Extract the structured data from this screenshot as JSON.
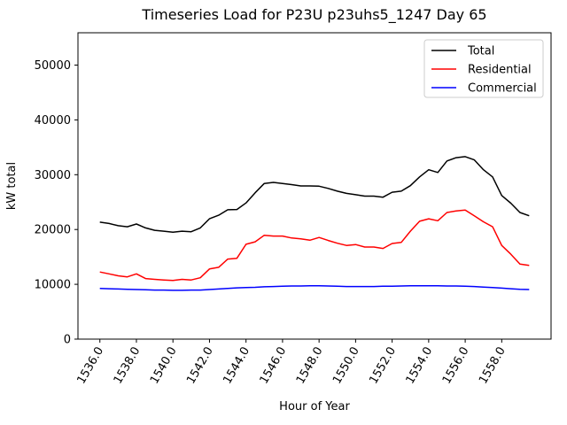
{
  "figure": {
    "title": "Timeseries Load for P23U p23uhs5_1247  Day 65"
  },
  "chart_data": {
    "type": "line",
    "title": "Timeseries Load for P23U p23uhs5_1247  Day 65",
    "xlabel": "Hour of Year",
    "ylabel": "kW total",
    "xlim": [
      1534.8,
      1560.7
    ],
    "ylim": [
      0,
      55900
    ],
    "grid": false,
    "xtick_rotation_deg": 60,
    "xticks": [
      1536,
      1538,
      1540,
      1542,
      1544,
      1546,
      1548,
      1550,
      1552,
      1554,
      1556,
      1558
    ],
    "xtick_labels": [
      "1536.0",
      "1538.0",
      "1540.0",
      "1542.0",
      "1544.0",
      "1546.0",
      "1548.0",
      "1550.0",
      "1552.0",
      "1554.0",
      "1556.0",
      "1558.0"
    ],
    "yticks": [
      0,
      10000,
      20000,
      30000,
      40000,
      50000
    ],
    "ytick_labels": [
      "0",
      "10000",
      "20000",
      "30000",
      "40000",
      "50000"
    ],
    "legend": {
      "position": "upper right",
      "entries": [
        {
          "label": "Total",
          "color": "#000000"
        },
        {
          "label": "Residential",
          "color": "#ff0000"
        },
        {
          "label": "Commercial",
          "color": "#0000ff"
        }
      ]
    },
    "x": [
      1536.0,
      1536.5,
      1537.0,
      1537.5,
      1538.0,
      1538.5,
      1539.0,
      1539.5,
      1540.0,
      1540.5,
      1541.0,
      1541.5,
      1542.0,
      1542.5,
      1543.0,
      1543.5,
      1544.0,
      1544.5,
      1545.0,
      1545.5,
      1546.0,
      1546.5,
      1547.0,
      1547.5,
      1548.0,
      1548.5,
      1549.0,
      1549.5,
      1550.0,
      1550.5,
      1551.0,
      1551.5,
      1552.0,
      1552.5,
      1553.0,
      1553.5,
      1554.0,
      1554.5,
      1555.0,
      1555.5,
      1556.0,
      1556.5,
      1557.0,
      1557.5,
      1558.0,
      1558.5,
      1559.0,
      1559.5
    ],
    "series": [
      {
        "name": "Total",
        "color": "#000000",
        "values": [
          21350,
          21100,
          20700,
          20500,
          21000,
          20300,
          19850,
          19700,
          19500,
          19700,
          19600,
          20300,
          21950,
          22600,
          23600,
          23650,
          24850,
          26700,
          28400,
          28600,
          28400,
          28200,
          27950,
          27950,
          27900,
          27500,
          27000,
          26600,
          26350,
          26100,
          26100,
          25900,
          26800,
          27000,
          28000,
          29600,
          30900,
          30400,
          32500,
          33100,
          33300,
          32700,
          30900,
          29600,
          26200,
          24800,
          23100,
          22500
        ]
      },
      {
        "name": "Residential",
        "color": "#ff0000",
        "values": [
          12250,
          11900,
          11550,
          11350,
          11900,
          11050,
          10900,
          10800,
          10700,
          10900,
          10800,
          11200,
          12800,
          13100,
          14600,
          14750,
          17300,
          17750,
          18950,
          18800,
          18800,
          18450,
          18300,
          18050,
          18550,
          18000,
          17500,
          17100,
          17250,
          16800,
          16800,
          16550,
          17450,
          17650,
          19700,
          21500,
          21950,
          21600,
          23100,
          23400,
          23550,
          22500,
          21400,
          20500,
          17100,
          15500,
          13700,
          13450
        ]
      },
      {
        "name": "Commercial",
        "color": "#0000ff",
        "values": [
          9250,
          9200,
          9150,
          9100,
          9050,
          9000,
          8950,
          8950,
          8900,
          8900,
          8950,
          8950,
          9050,
          9150,
          9250,
          9350,
          9400,
          9450,
          9550,
          9600,
          9650,
          9700,
          9700,
          9750,
          9750,
          9700,
          9650,
          9600,
          9600,
          9600,
          9600,
          9650,
          9650,
          9700,
          9750,
          9750,
          9750,
          9750,
          9700,
          9700,
          9650,
          9600,
          9500,
          9400,
          9300,
          9200,
          9100,
          9050
        ]
      }
    ]
  }
}
